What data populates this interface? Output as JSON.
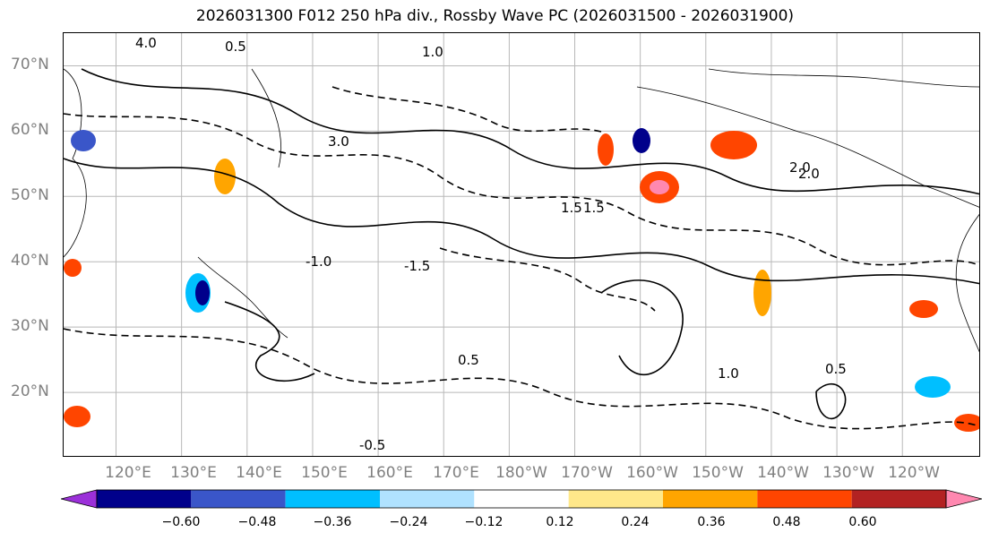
{
  "title": "2026031300 F012 250 hPa div., Rossby Wave PC (2026031500 - 2026031900)",
  "map": {
    "projection": "PlateCarree",
    "lon_range": [
      112,
      252
    ],
    "lat_range": [
      10,
      75
    ],
    "lat_labels": [
      "70°N",
      "60°N",
      "50°N",
      "40°N",
      "30°N",
      "20°N"
    ],
    "lat_values": [
      70,
      60,
      50,
      40,
      30,
      20
    ],
    "lon_labels": [
      "120°E",
      "130°E",
      "140°E",
      "150°E",
      "160°E",
      "170°E",
      "180°W",
      "170°W",
      "160°W",
      "150°W",
      "140°W",
      "130°W",
      "120°W"
    ],
    "lon_values": [
      120,
      130,
      140,
      150,
      160,
      170,
      180,
      190,
      200,
      210,
      220,
      230,
      240
    ],
    "contour_labels": [
      "4.0",
      "0.5",
      "1.0",
      "3.0",
      "1.5",
      "2.0",
      "-0.5",
      "-1.0",
      "-1.5",
      "2.0",
      "1.0",
      "0.5",
      "0.5",
      "1.5"
    ]
  },
  "colorbar": {
    "colors": [
      "#9b30d9",
      "#00008b",
      "#3a56c9",
      "#00bfff",
      "#b0e2ff",
      "#ffffff",
      "#ffe88a",
      "#ffa500",
      "#ff4500",
      "#b22222",
      "#ff88b0"
    ],
    "boundaries": [
      -0.72,
      -0.6,
      -0.48,
      -0.36,
      -0.24,
      -0.12,
      0.12,
      0.24,
      0.36,
      0.48,
      0.6,
      0.72
    ],
    "tick_values": [
      -0.6,
      -0.48,
      -0.36,
      -0.24,
      -0.12,
      0.12,
      0.24,
      0.36,
      0.48,
      0.6
    ],
    "tick_labels": [
      "−0.60",
      "−0.48",
      "−0.36",
      "−0.24",
      "−0.12",
      "0.12",
      "0.24",
      "0.36",
      "0.48",
      "0.60"
    ]
  }
}
